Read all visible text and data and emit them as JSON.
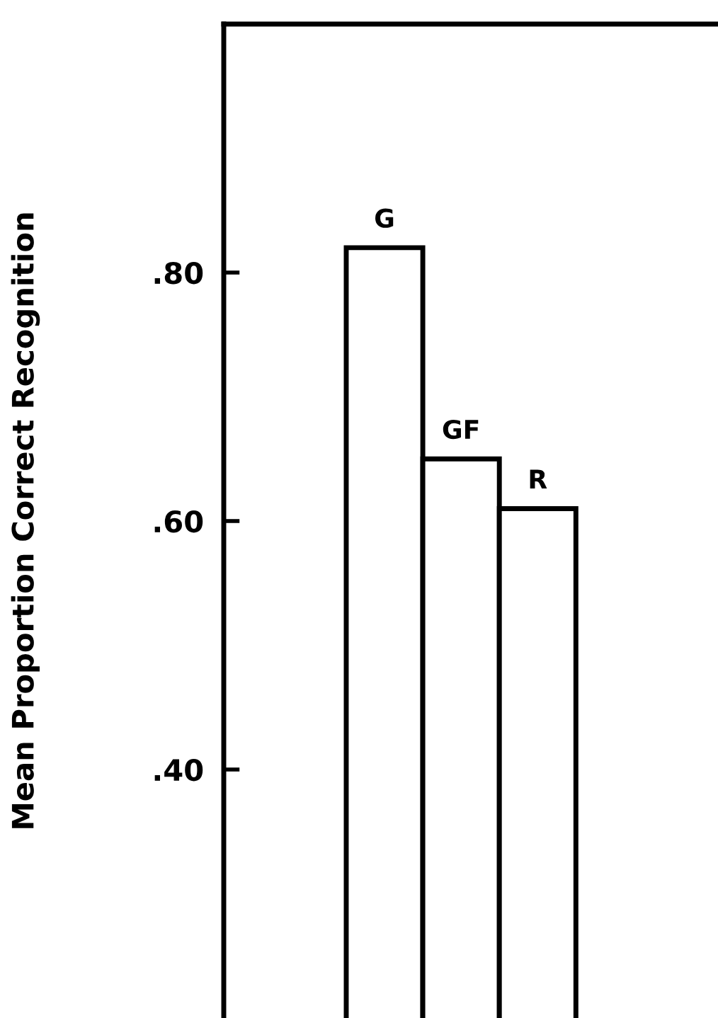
{
  "chart_data": {
    "type": "bar",
    "ylabel": "Mean Proportion Correct Recognition",
    "categories": [
      "G",
      "GF",
      "R"
    ],
    "values": [
      0.82,
      0.65,
      0.61
    ],
    "colors": [
      "#ffffff",
      "#ffffff",
      "#ffffff"
    ],
    "ylim": [
      0.2,
      1.0
    ],
    "yticks": [
      {
        "value": 0.4,
        "label": ".40"
      },
      {
        "value": 0.6,
        "label": ".60"
      },
      {
        "value": 0.8,
        "label": ".80"
      }
    ],
    "tick_labels": "y",
    "grid": false,
    "legend": false
  }
}
